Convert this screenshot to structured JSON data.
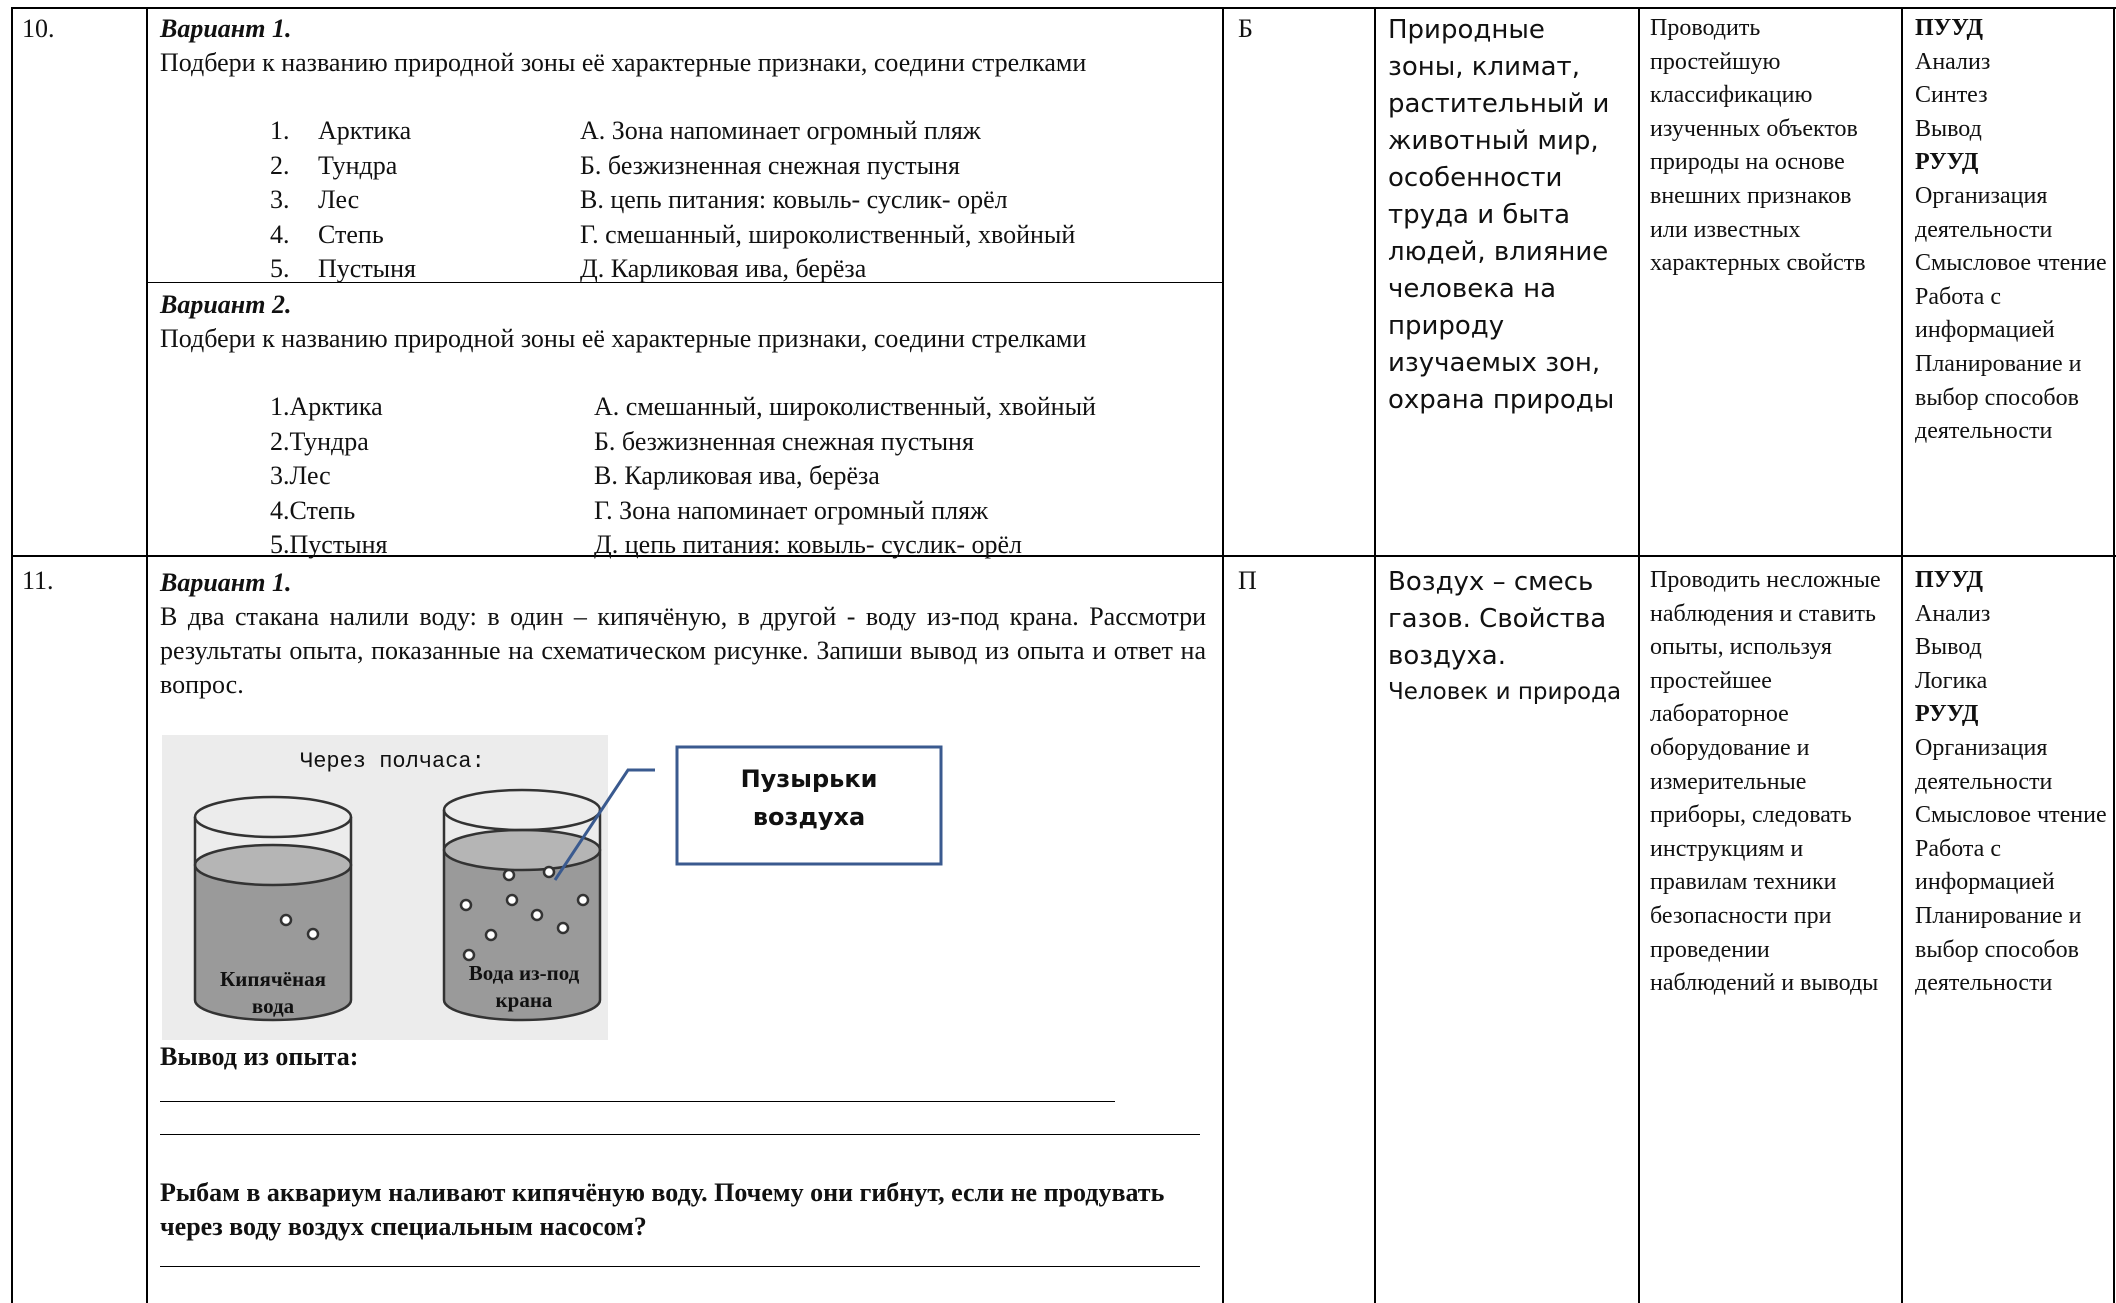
{
  "rows": [
    {
      "number": "10.",
      "variants": [
        {
          "title": "Вариант 1.",
          "task": "Подбери к названию природной зоны её характерные признаки, соедини стрелками",
          "items": [
            {
              "marker": "1.",
              "zone": "Арктика",
              "feature": "А. Зона напоминает огромный пляж"
            },
            {
              "marker": "2.",
              "zone": "Тундра",
              "feature": "Б. безжизненная снежная пустыня"
            },
            {
              "marker": "3.",
              "zone": "Лес",
              "feature": "В. цепь питания: ковыль- суслик- орёл"
            },
            {
              "marker": "4.",
              "zone": "Степь",
              "feature": "Г. смешанный, широколиственный, хвойный"
            },
            {
              "marker": "5.",
              "zone": "Пустыня",
              "feature": "Д. Карликовая ива, берёза"
            }
          ]
        },
        {
          "title": "Вариант 2.",
          "task": "Подбери к названию природной зоны её характерные признаки, соедини стрелками",
          "items": [
            {
              "zone": "1.Арктика",
              "feature": "А. смешанный, широколиственный, хвойный"
            },
            {
              "zone": "2.Тундра",
              "feature": "Б. безжизненная снежная пустыня"
            },
            {
              "zone": "3.Лес",
              "feature": "В. Карликовая ива, берёза"
            },
            {
              "zone": "4.Степь",
              "feature": "Г. Зона напоминает огромный пляж"
            },
            {
              "zone": "5.Пустыня",
              "feature": "Д. цепь питания: ковыль- суслик- орёл"
            }
          ]
        }
      ],
      "type": "Б",
      "topic": [
        "Природные зоны, климат, растительный и животный мир, особенности труда и быта людей, влияние человека на природу изучаемых зон, охрана природы"
      ],
      "skills": "Проводить простейшую классификацию изученных объектов природы на основе внешних признаков или известных характерных свойств",
      "uud": [
        {
          "heading": "ПУУД",
          "items": [
            "Анализ",
            "Синтез",
            "Вывод"
          ]
        },
        {
          "heading": "РУУД",
          "items": [
            "Организация деятельности",
            "Смысловое чтение",
            "Работа с информацией",
            "Планирование и выбор способов деятельности"
          ]
        }
      ]
    },
    {
      "number": "11.",
      "variant": {
        "title": "Вариант 1.",
        "task": "В два стакана налили воду: в один – кипячёную, в другой - воду из-под крана. Рассмотри результаты опыта, показанные на схематическом рисунке. Запиши вывод из опыта и ответ на вопрос.",
        "figure": {
          "caption": "Через полчаса:",
          "left_label": "Кипячёная вода",
          "right_label": "Вода из-под крана",
          "callout": "Пузырьки воздуха"
        },
        "conclusion_label": "Вывод из опыта:",
        "question": "Рыбам в аквариум наливают кипячёную воду. Почему они гибнут, если не продувать через воду воздух специальным насосом?"
      },
      "type": "П",
      "topic": [
        "Воздух – смесь газов. Свойства воздуха.",
        "Человек и природа"
      ],
      "skills": "Проводить несложные наблюдения и ставить опыты, используя простейшее лабораторное оборудование и измерительные приборы, следовать инструкциям и правилам техники безопасности при проведении наблюдений и выводы",
      "uud": [
        {
          "heading": "ПУУД",
          "items": [
            "Анализ",
            "Вывод",
            "Логика"
          ]
        },
        {
          "heading": "РУУД",
          "items": [
            "Организация деятельности",
            "Смысловое чтение",
            "Работа с информацией",
            "Планирование и выбор способов деятельности"
          ]
        }
      ]
    }
  ]
}
